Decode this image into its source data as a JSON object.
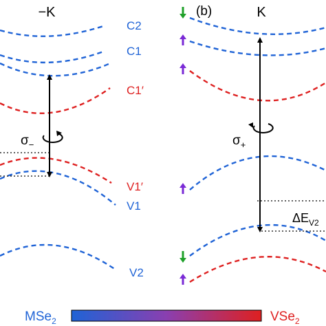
{
  "colors": {
    "mse2": "#1f63d6",
    "vse2": "#de2020",
    "spin_down": "#1fa02a",
    "spin_up": "#7a2ad6",
    "black": "#000000"
  },
  "left_panel": {
    "valley": "−K",
    "band_labels": {
      "c2": "C2",
      "c1": "C1",
      "c1p": "C1′",
      "v1p": "V1′",
      "v1": "V1",
      "v2": "V2"
    },
    "polarization": {
      "sigma": "σ",
      "sign": "−"
    }
  },
  "right_panel": {
    "panel_label": "(b)",
    "valley": "K",
    "polarization": {
      "sigma": "σ",
      "sign": "+"
    },
    "delta_label": {
      "prefix": "ΔE",
      "subscript": "V2"
    },
    "spin_arrows": [
      "down",
      "up",
      "up",
      "up",
      "down",
      "up"
    ]
  },
  "colorbar": {
    "left_label": {
      "base": "MSe",
      "subscript": "2"
    },
    "right_label": {
      "base": "VSe",
      "subscript": "2"
    }
  }
}
